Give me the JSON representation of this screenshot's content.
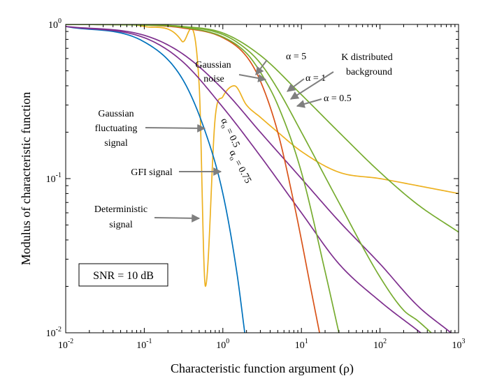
{
  "chart_data": {
    "type": "line",
    "title": "",
    "xlabel": "Characteristic function argument (ρ)",
    "ylabel": "Modulus of characteristic function",
    "xscale": "log",
    "yscale": "log",
    "xlim": [
      0.01,
      1000
    ],
    "ylim": [
      0.01,
      1
    ],
    "grid": false,
    "x_ticks": [
      {
        "value": 0.01,
        "base": "10",
        "exp": "-2"
      },
      {
        "value": 0.1,
        "base": "10",
        "exp": "-1"
      },
      {
        "value": 1,
        "base": "10",
        "exp": "0"
      },
      {
        "value": 10,
        "base": "10",
        "exp": "1"
      },
      {
        "value": 100,
        "base": "10",
        "exp": "2"
      },
      {
        "value": 1000,
        "base": "10",
        "exp": "3"
      }
    ],
    "y_ticks": [
      {
        "value": 0.01,
        "base": "10",
        "exp": "-2"
      },
      {
        "value": 0.1,
        "base": "10",
        "exp": "-1"
      },
      {
        "value": 1,
        "base": "10",
        "exp": "0"
      }
    ],
    "series": [
      {
        "id": "deterministic",
        "color": "#EDB120",
        "x": [
          0.01,
          0.1,
          0.3,
          0.5,
          0.6,
          0.8,
          1.0,
          1.4,
          2.0,
          3.0,
          5.0,
          10,
          30,
          100,
          300,
          1000
        ],
        "y": [
          1.0,
          0.97,
          0.78,
          0.4,
          0.02,
          0.25,
          0.34,
          0.4,
          0.3,
          0.25,
          0.2,
          0.15,
          0.11,
          0.1,
          0.09,
          0.08
        ]
      },
      {
        "id": "gaussian-fluctuating",
        "color": "#0072BD",
        "x": [
          0.01,
          0.1,
          0.3,
          0.6,
          1.0,
          1.5,
          1.9
        ],
        "y": [
          0.97,
          0.77,
          0.45,
          0.2,
          0.08,
          0.025,
          0.01
        ]
      },
      {
        "id": "gfi-0.5",
        "color": "#7E2F8E",
        "x": [
          0.01,
          0.1,
          0.3,
          1.0,
          3.0,
          10,
          30,
          100,
          330
        ],
        "y": [
          0.97,
          0.82,
          0.58,
          0.29,
          0.14,
          0.06,
          0.028,
          0.016,
          0.01
        ]
      },
      {
        "id": "gfi-0.75",
        "color": "#7E2F8E",
        "x": [
          0.01,
          0.1,
          0.3,
          1.0,
          3.0,
          10,
          30,
          100,
          300,
          800
        ],
        "y": [
          0.97,
          0.85,
          0.65,
          0.38,
          0.2,
          0.1,
          0.053,
          0.028,
          0.015,
          0.01
        ]
      },
      {
        "id": "gaussian-noise",
        "color": "#D95319",
        "x": [
          0.01,
          0.1,
          0.3,
          1.0,
          2.0,
          3.0,
          5.0,
          8.0,
          10,
          13,
          17
        ],
        "y": [
          1.0,
          0.99,
          0.95,
          0.82,
          0.62,
          0.43,
          0.2,
          0.07,
          0.04,
          0.02,
          0.01
        ]
      },
      {
        "id": "k-alpha-5",
        "color": "#77AC30",
        "x": [
          0.01,
          0.1,
          0.3,
          1.0,
          2.0,
          3.0,
          5.0,
          10,
          20,
          30
        ],
        "y": [
          1.0,
          0.99,
          0.96,
          0.83,
          0.65,
          0.49,
          0.3,
          0.11,
          0.025,
          0.01
        ]
      },
      {
        "id": "k-alpha-1",
        "color": "#77AC30",
        "x": [
          0.01,
          0.1,
          0.3,
          1.0,
          2.0,
          3.0,
          5.0,
          10,
          30,
          100,
          200,
          300,
          450
        ],
        "y": [
          1.0,
          0.99,
          0.97,
          0.86,
          0.69,
          0.56,
          0.38,
          0.2,
          0.07,
          0.023,
          0.014,
          0.012,
          0.01
        ]
      },
      {
        "id": "k-alpha-0.5",
        "color": "#77AC30",
        "x": [
          0.01,
          0.1,
          0.3,
          1.0,
          3.0,
          10,
          30,
          100,
          300,
          1000
        ],
        "y": [
          1.0,
          0.99,
          0.97,
          0.88,
          0.63,
          0.35,
          0.2,
          0.11,
          0.068,
          0.045
        ]
      }
    ],
    "annotations": {
      "k_background": [
        "K distributed",
        "background"
      ],
      "gaussian_noise": [
        "Gaussian",
        "noise"
      ],
      "alpha_5": "α = 5",
      "alpha_1": "α = 1",
      "alpha_05": "α = 0.5",
      "gauss_fluct": [
        "Gaussian",
        "fluctuating",
        "signal"
      ],
      "gfi": "GFI signal",
      "deterministic": [
        "Deterministic",
        "signal"
      ],
      "alpha0_05": {
        "prefix": "α",
        "sub": "o",
        "value": " = 0.5"
      },
      "alpha0_075": {
        "prefix": "α",
        "sub": "o",
        "value": " = 0.75"
      },
      "snr_box": "SNR = 10 dB"
    }
  }
}
